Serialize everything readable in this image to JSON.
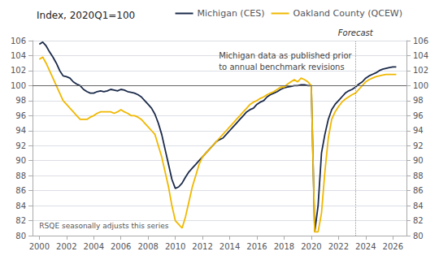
{
  "chart_data": {
    "type": "line",
    "title": "Index, 2020Q1=100",
    "x": [
      2000.0,
      2000.25,
      2000.5,
      2000.75,
      2001.0,
      2001.25,
      2001.5,
      2001.75,
      2002.0,
      2002.25,
      2002.5,
      2002.75,
      2003.0,
      2003.25,
      2003.5,
      2003.75,
      2004.0,
      2004.25,
      2004.5,
      2004.75,
      2005.0,
      2005.25,
      2005.5,
      2005.75,
      2006.0,
      2006.25,
      2006.5,
      2006.75,
      2007.0,
      2007.25,
      2007.5,
      2007.75,
      2008.0,
      2008.25,
      2008.5,
      2008.75,
      2009.0,
      2009.25,
      2009.5,
      2009.75,
      2010.0,
      2010.25,
      2010.5,
      2010.75,
      2011.0,
      2011.25,
      2011.5,
      2011.75,
      2012.0,
      2012.25,
      2012.5,
      2012.75,
      2013.0,
      2013.25,
      2013.5,
      2013.75,
      2014.0,
      2014.25,
      2014.5,
      2014.75,
      2015.0,
      2015.25,
      2015.5,
      2015.75,
      2016.0,
      2016.25,
      2016.5,
      2016.75,
      2017.0,
      2017.25,
      2017.5,
      2017.75,
      2018.0,
      2018.25,
      2018.5,
      2018.75,
      2019.0,
      2019.25,
      2019.5,
      2019.75,
      2020.0,
      2020.25,
      2020.5,
      2020.75,
      2021.0,
      2021.25,
      2021.5,
      2021.75,
      2022.0,
      2022.25,
      2022.5,
      2022.75,
      2023.0,
      2023.25,
      2023.5,
      2023.75,
      2024.0,
      2024.25,
      2024.5,
      2024.75,
      2025.0,
      2025.25,
      2025.5,
      2025.75,
      2026.0,
      2026.25
    ],
    "series": [
      {
        "name": "Michigan (CES)",
        "color": "#1b2a4a",
        "values": [
          105.5,
          105.8,
          105.3,
          104.5,
          103.8,
          103.0,
          102.0,
          101.3,
          101.2,
          101.0,
          100.5,
          100.2,
          100.0,
          99.5,
          99.2,
          99.0,
          99.0,
          99.2,
          99.3,
          99.2,
          99.3,
          99.5,
          99.4,
          99.3,
          99.5,
          99.4,
          99.2,
          99.1,
          99.0,
          98.8,
          98.5,
          98.0,
          97.5,
          97.0,
          96.2,
          95.0,
          93.5,
          91.5,
          89.5,
          87.5,
          86.3,
          86.5,
          87.0,
          87.8,
          88.5,
          89.0,
          89.5,
          90.0,
          90.5,
          91.0,
          91.5,
          92.0,
          92.5,
          92.8,
          93.0,
          93.5,
          94.0,
          94.5,
          95.0,
          95.5,
          96.0,
          96.5,
          96.8,
          97.0,
          97.5,
          97.8,
          98.0,
          98.5,
          98.8,
          99.0,
          99.2,
          99.5,
          99.7,
          99.8,
          99.9,
          100.0,
          100.0,
          100.1,
          100.1,
          100.0,
          100.0,
          80.5,
          84.0,
          91.0,
          93.5,
          95.5,
          96.8,
          97.5,
          98.0,
          98.5,
          99.0,
          99.3,
          99.5,
          99.8,
          100.2,
          100.5,
          101.0,
          101.3,
          101.5,
          101.7,
          102.0,
          102.2,
          102.3,
          102.4,
          102.5,
          102.5
        ]
      },
      {
        "name": "Oakland County (QCEW)",
        "color": "#f0b800",
        "values": [
          103.5,
          103.8,
          103.0,
          102.0,
          101.0,
          100.0,
          99.0,
          98.0,
          97.5,
          97.0,
          96.5,
          96.0,
          95.5,
          95.5,
          95.5,
          95.8,
          96.0,
          96.3,
          96.5,
          96.5,
          96.5,
          96.5,
          96.3,
          96.5,
          96.8,
          96.5,
          96.3,
          96.0,
          96.0,
          95.8,
          95.5,
          95.0,
          94.5,
          94.0,
          93.5,
          92.0,
          90.5,
          88.5,
          86.5,
          84.0,
          82.0,
          81.5,
          81.0,
          82.5,
          84.5,
          86.5,
          88.0,
          89.5,
          90.5,
          91.0,
          91.5,
          92.0,
          92.5,
          93.0,
          93.5,
          94.0,
          94.5,
          95.0,
          95.5,
          96.0,
          96.5,
          97.0,
          97.5,
          97.8,
          98.0,
          98.3,
          98.5,
          98.8,
          99.0,
          99.2,
          99.5,
          99.8,
          99.8,
          100.2,
          100.5,
          100.8,
          100.5,
          101.0,
          100.8,
          100.5,
          100.0,
          80.5,
          80.5,
          83.0,
          88.5,
          93.0,
          95.5,
          96.5,
          97.2,
          97.8,
          98.2,
          98.5,
          98.8,
          99.0,
          99.5,
          100.0,
          100.5,
          100.8,
          101.0,
          101.2,
          101.3,
          101.4,
          101.5,
          101.5,
          101.5,
          101.5
        ]
      }
    ],
    "xlim": [
      1999.5,
      2027.0
    ],
    "xticks": [
      2000,
      2002,
      2004,
      2006,
      2008,
      2010,
      2012,
      2014,
      2016,
      2018,
      2020,
      2022,
      2024,
      2026
    ],
    "ylim": [
      80,
      106
    ],
    "yticks": [
      80,
      82,
      84,
      86,
      88,
      90,
      92,
      94,
      96,
      98,
      100,
      102,
      104,
      106
    ],
    "y2lim": [
      80,
      106
    ],
    "y2ticks": [
      80,
      82,
      84,
      86,
      88,
      90,
      92,
      94,
      96,
      98,
      100,
      102,
      104,
      106
    ],
    "grid": true,
    "legend": "upper right",
    "hline": 100,
    "vline": {
      "value": 2023.25,
      "label": "Forecast"
    },
    "annotations": [
      "Michigan data as published prior\nto annual benchmark revisions",
      "RSQE seasonally adjusts this series"
    ]
  }
}
